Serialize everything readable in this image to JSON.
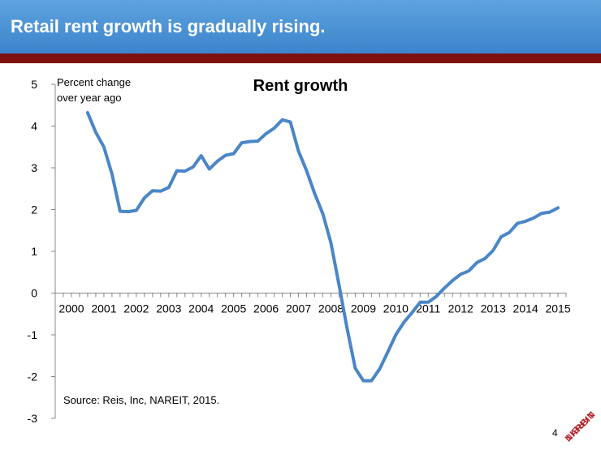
{
  "header": {
    "title": "Retail rent growth is gradually rising.",
    "accent_color": "#7f1010",
    "background_color": "#4a90d6"
  },
  "page_number": "4",
  "logo": {
    "text": "NAREIT",
    "icon": "nareit-logo-icon",
    "color": "#b21f24"
  },
  "chart_data": {
    "type": "line",
    "title": "Rent growth",
    "ylabel_line1": "Percent change",
    "ylabel_line2": "over year ago",
    "source": "Source: Reis, Inc, NAREIT, 2015.",
    "xlim": [
      2000,
      2015.75
    ],
    "ylim": [
      -3,
      5
    ],
    "yticks": [
      5,
      4,
      3,
      2,
      1,
      0,
      -1,
      -2,
      -3
    ],
    "xticks": [
      "2000",
      "2001",
      "2002",
      "2003",
      "2004",
      "2005",
      "2006",
      "2007",
      "2008",
      "2009",
      "2010",
      "2011",
      "2012",
      "2013",
      "2014",
      "2015"
    ],
    "grid": false,
    "line_color": "#4a86c8",
    "series": [
      {
        "x": [
          2001.0,
          2001.25,
          2001.5,
          2001.75,
          2002.0,
          2002.25,
          2002.5,
          2002.75,
          2003.0,
          2003.25,
          2003.5,
          2003.75,
          2004.0,
          2004.25,
          2004.5,
          2004.75,
          2005.0,
          2005.25,
          2005.5,
          2005.75,
          2006.0,
          2006.25,
          2006.5,
          2006.75,
          2007.0,
          2007.25,
          2007.5,
          2007.75,
          2008.0,
          2008.25,
          2008.5,
          2008.75,
          2009.0,
          2009.25,
          2009.5,
          2009.75,
          2010.0,
          2010.25,
          2010.5,
          2010.75,
          2011.0,
          2011.25,
          2011.5,
          2011.75,
          2012.0,
          2012.25,
          2012.5,
          2012.75,
          2013.0,
          2013.25,
          2013.5,
          2013.75,
          2014.0,
          2014.25,
          2014.5,
          2014.75,
          2015.0,
          2015.25,
          2015.5
        ],
        "values": [
          4.32,
          3.85,
          3.5,
          2.85,
          1.96,
          1.95,
          1.98,
          2.28,
          2.45,
          2.44,
          2.53,
          2.93,
          2.92,
          3.02,
          3.29,
          2.97,
          3.16,
          3.3,
          3.34,
          3.6,
          3.63,
          3.64,
          3.82,
          3.95,
          4.15,
          4.1,
          3.4,
          2.93,
          2.38,
          1.9,
          1.2,
          0.2,
          -0.85,
          -1.8,
          -2.1,
          -2.1,
          -1.82,
          -1.42,
          -1.0,
          -0.7,
          -0.47,
          -0.22,
          -0.22,
          -0.08,
          0.12,
          0.3,
          0.45,
          0.53,
          0.73,
          0.83,
          1.02,
          1.35,
          1.45,
          1.67,
          1.72,
          1.8,
          1.91,
          1.94,
          2.04
        ]
      }
    ]
  }
}
